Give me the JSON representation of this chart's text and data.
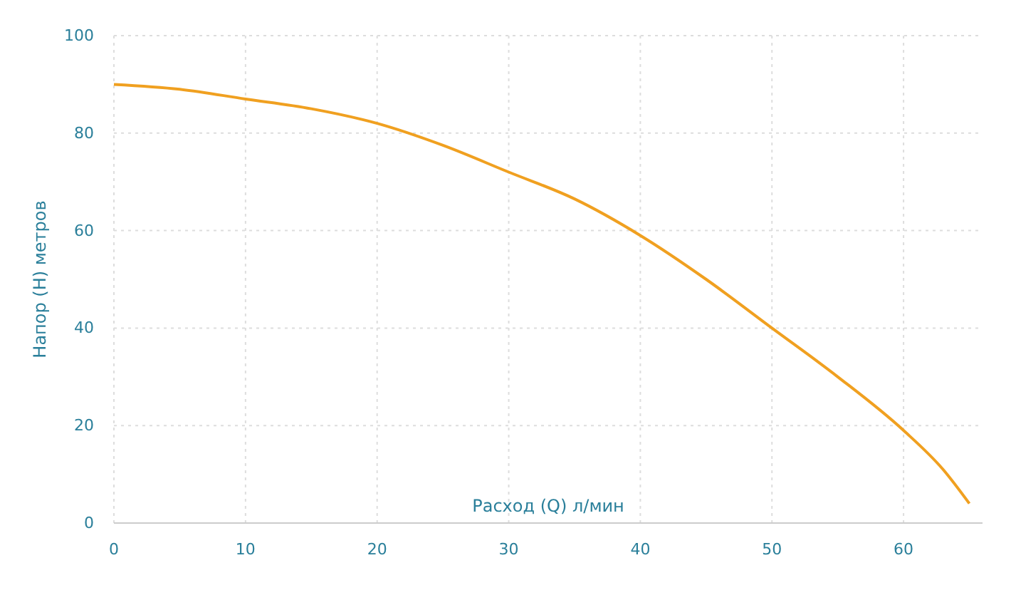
{
  "chart_data": {
    "type": "line",
    "xlabel": "Расход (Q) л/мин",
    "ylabel": "Напор (H) метров",
    "x": [
      0,
      5,
      10,
      15,
      20,
      25,
      30,
      35,
      40,
      45,
      50,
      55,
      60,
      63,
      65
    ],
    "series": [
      {
        "color": "#f0a020",
        "values": [
          90,
          89,
          87,
          85,
          82,
          77.5,
          72,
          66.5,
          59,
          50,
          40,
          30,
          19,
          11,
          4
        ]
      }
    ],
    "xlim": [
      0,
      66
    ],
    "ylim": [
      0,
      100
    ],
    "xticks": [
      0,
      10,
      20,
      30,
      40,
      50,
      60
    ],
    "yticks": [
      0,
      20,
      40,
      60,
      80,
      100
    ],
    "grid": true,
    "marker": "none",
    "line_style": "solid"
  }
}
